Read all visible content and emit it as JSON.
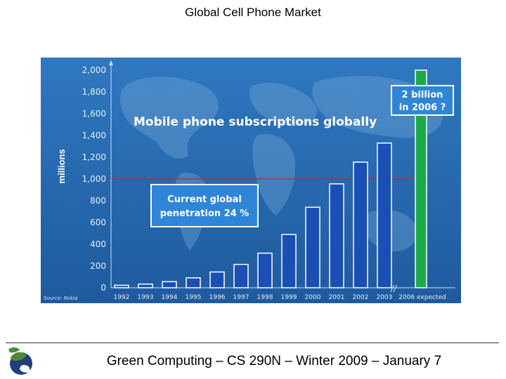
{
  "slide": {
    "title": "Global Cell Phone Market",
    "footer": "Green Computing – CS 290N – Winter 2009 – January 7"
  },
  "colors": {
    "panel_bg": "#2a6bb0",
    "bar_blue": "#1a4fb5",
    "bar_green": "#1fa84a",
    "reference_line": "#b03030",
    "callout_bg": "#2f86d6",
    "text_white": "#ffffff"
  },
  "chart_data": {
    "type": "bar",
    "title": "Mobile phone subscriptions globally",
    "ylabel": "millions",
    "xlabel": "",
    "ylim": [
      0,
      2000
    ],
    "yticks": [
      "0",
      "200",
      "400",
      "600",
      "800",
      "1,000",
      "1,200",
      "1,400",
      "1,600",
      "1,800",
      "2,000"
    ],
    "categories": [
      "1992",
      "1993",
      "1994",
      "1995",
      "1996",
      "1997",
      "1998",
      "1999",
      "2000",
      "2001",
      "2002",
      "2003",
      "2006 expected"
    ],
    "values": [
      23,
      34,
      56,
      91,
      145,
      215,
      318,
      490,
      740,
      955,
      1155,
      1330,
      2000
    ],
    "reference_line": 1000,
    "annotations": {
      "penetration_line1": "Current global",
      "penetration_line2": "penetration 24 %",
      "forecast_line1": "2 billion",
      "forecast_line2": "in 2006 ?"
    },
    "axis_break": "//",
    "source": "Source: Nokia"
  }
}
